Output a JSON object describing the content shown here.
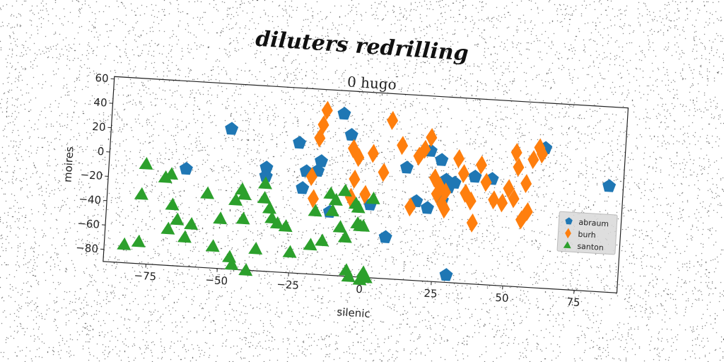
{
  "suptitle": "diluters redrilling",
  "chart_data": {
    "type": "scatter",
    "title": "0 hugo",
    "xlabel": "silenic",
    "ylabel": "moires",
    "xlim": [
      -90,
      90
    ],
    "ylim": [
      -90,
      62
    ],
    "x_ticks": [
      -75,
      -50,
      -25,
      0,
      25,
      50,
      75
    ],
    "y_ticks": [
      -80,
      -60,
      -40,
      -20,
      0,
      20,
      40,
      60
    ],
    "x_tick_labels": [
      "−75",
      "−50",
      "−25",
      "0",
      "25",
      "50",
      "75"
    ],
    "y_tick_labels": [
      "−80",
      "−60",
      "−40",
      "−20",
      "0",
      "20",
      "40",
      "60"
    ],
    "grid": false,
    "legend_position": "right",
    "series": [
      {
        "name": "abraum",
        "color": "#1f77b4",
        "marker": "pentagon",
        "points": [
          [
            -48,
            25
          ],
          [
            -63,
            -10
          ],
          [
            -35,
            -5
          ],
          [
            -35,
            -12
          ],
          [
            -24,
            17
          ],
          [
            -21,
            -6
          ],
          [
            -22,
            -20
          ],
          [
            -17,
            -5
          ],
          [
            -16,
            3
          ],
          [
            -9,
            43
          ],
          [
            -6,
            26
          ],
          [
            -12,
            -38
          ],
          [
            2,
            -30
          ],
          [
            8,
            -56
          ],
          [
            14,
            2
          ],
          [
            18,
            -25
          ],
          [
            22,
            17
          ],
          [
            22,
            -30
          ],
          [
            26,
            10
          ],
          [
            27,
            -23
          ],
          [
            28,
            -6
          ],
          [
            29,
            -12
          ],
          [
            31,
            -8
          ],
          [
            30,
            -84
          ],
          [
            38,
            -2
          ],
          [
            44,
            -3
          ],
          [
            62,
            25
          ],
          [
            85,
            -3
          ]
        ]
      },
      {
        "name": "burh",
        "color": "#ff7f0e",
        "marker": "diamond",
        "points": [
          [
            -15,
            45
          ],
          [
            -16,
            33
          ],
          [
            -17,
            22
          ],
          [
            -19,
            -10
          ],
          [
            -18,
            -28
          ],
          [
            -5,
            15
          ],
          [
            -4,
            -10
          ],
          [
            -5,
            -25
          ],
          [
            -3,
            8
          ],
          [
            0,
            -22
          ],
          [
            2,
            12
          ],
          [
            6,
            -3
          ],
          [
            8,
            40
          ],
          [
            12,
            20
          ],
          [
            16,
            -30
          ],
          [
            18,
            12
          ],
          [
            20,
            18
          ],
          [
            22,
            28
          ],
          [
            24,
            -5
          ],
          [
            26,
            -12
          ],
          [
            25,
            -18
          ],
          [
            27,
            -26
          ],
          [
            28,
            -30
          ],
          [
            28,
            -16
          ],
          [
            32,
            12
          ],
          [
            34,
            0
          ],
          [
            35,
            -16
          ],
          [
            37,
            -22
          ],
          [
            38,
            -40
          ],
          [
            40,
            8
          ],
          [
            42,
            -6
          ],
          [
            45,
            -20
          ],
          [
            48,
            -22
          ],
          [
            50,
            -10
          ],
          [
            52,
            -18
          ],
          [
            52,
            20
          ],
          [
            53,
            8
          ],
          [
            56,
            -5
          ],
          [
            55,
            -35
          ],
          [
            57,
            -28
          ],
          [
            58,
            15
          ],
          [
            60,
            25
          ],
          [
            61,
            20
          ]
        ]
      },
      {
        "name": "santon",
        "color": "#2ca02c",
        "marker": "triangle",
        "points": [
          [
            -83,
            -75
          ],
          [
            -78,
            -72
          ],
          [
            -77,
            -8
          ],
          [
            -78,
            -33
          ],
          [
            -70,
            -18
          ],
          [
            -68,
            -15
          ],
          [
            -67,
            -40
          ],
          [
            -68,
            -60
          ],
          [
            -65,
            -52
          ],
          [
            -62,
            -66
          ],
          [
            -60,
            -55
          ],
          [
            -55,
            -29
          ],
          [
            -52,
            -72
          ],
          [
            -50,
            -49
          ],
          [
            -46,
            -80
          ],
          [
            -45,
            -33
          ],
          [
            -45,
            -86
          ],
          [
            -43,
            -24
          ],
          [
            -42,
            -28
          ],
          [
            -42,
            -48
          ],
          [
            -40,
            -90
          ],
          [
            -37,
            -72
          ],
          [
            -35,
            -18
          ],
          [
            -35,
            -30
          ],
          [
            -33,
            -38
          ],
          [
            -32,
            -46
          ],
          [
            -30,
            -50
          ],
          [
            -27,
            -52
          ],
          [
            -25,
            -73
          ],
          [
            -18,
            -66
          ],
          [
            -17,
            -38
          ],
          [
            -14,
            -62
          ],
          [
            -12,
            -23
          ],
          [
            -11,
            -37
          ],
          [
            -10,
            -28
          ],
          [
            -8,
            -50
          ],
          [
            -7,
            -20
          ],
          [
            -6,
            -58
          ],
          [
            -5,
            -85
          ],
          [
            -4,
            -90
          ],
          [
            -3,
            -30
          ],
          [
            -2,
            -33
          ],
          [
            -2,
            -46
          ],
          [
            -1,
            -48
          ],
          [
            0,
            -48
          ],
          [
            1,
            -86
          ],
          [
            0,
            -92
          ],
          [
            2,
            -90
          ],
          [
            3,
            -25
          ]
        ]
      }
    ]
  }
}
